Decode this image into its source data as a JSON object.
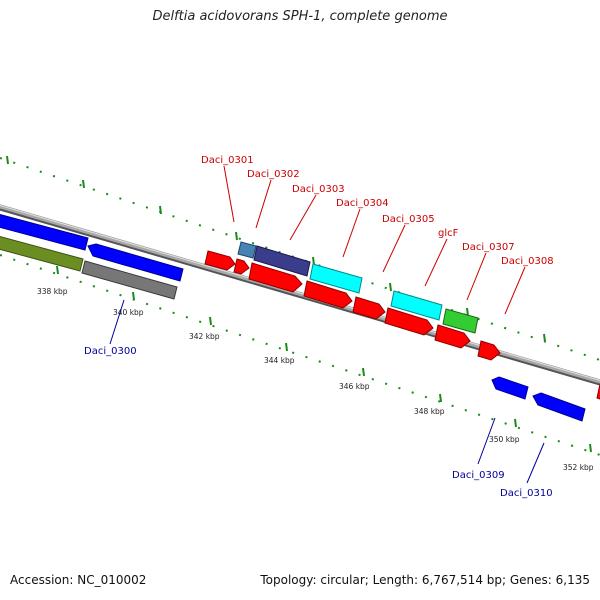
{
  "title": "Delftia acidovorans SPH-1, complete genome",
  "footer": {
    "accession": "Accession: NC_010002",
    "summary": "Topology: circular; Length: 6,767,514 bp; Genes: 6,135"
  },
  "colors": {
    "backbone": "#888888",
    "tick": "#1a8a1a",
    "label_forward": "#cc0000",
    "label_reverse": "#000099",
    "red": "#ff0000",
    "blue": "#0000ff",
    "cyan": "#00ffff",
    "green": "#33cc33",
    "olive": "#6b8e23",
    "gray": "#777777",
    "steelblue": "#4682b4",
    "slateblue": "#3c3c8c"
  },
  "axis": {
    "tick_labels": [
      "338 kbp",
      "340 kbp",
      "342 kbp",
      "344 kbp",
      "346 kbp",
      "348 kbp",
      "350 kbp",
      "352 kbp"
    ]
  },
  "genes": {
    "forward_labels": [
      "Daci_0301",
      "Daci_0302",
      "Daci_0303",
      "Daci_0304",
      "Daci_0305",
      "glcF",
      "Daci_0307",
      "Daci_0308"
    ],
    "reverse_labels": [
      "Daci_0300",
      "Daci_0309",
      "Daci_0310"
    ]
  }
}
